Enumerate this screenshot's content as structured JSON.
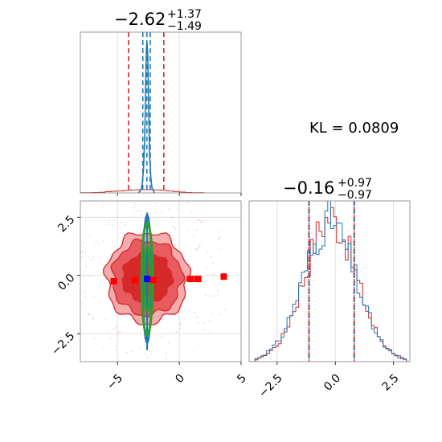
{
  "colors": {
    "posterior": "#d62728",
    "reference": "#1f77b4",
    "contour_fill_light": "#f4a9aa",
    "contour_fill_mid": "#e8575a",
    "contour_fill_dark": "#d62728",
    "ellipse": "#2ca02c",
    "scatter_red": "#ff0000",
    "scatter_blue": "#0000ff",
    "grid": "#d9d9d9",
    "axis": "#808080"
  },
  "kl": {
    "text": "KL = 0.0809"
  },
  "chart_data": [
    {
      "type": "histogram",
      "panel": "top-left marginal",
      "title": {
        "value": "−2.62",
        "plus": "+1.37",
        "minus": "−1.49"
      },
      "xlim": [
        -8,
        5
      ],
      "quantile_lines_red": [
        -4.11,
        -2.62,
        -1.25
      ],
      "quantile_lines_blue": [
        -2.95,
        -2.62,
        -2.35
      ],
      "vertical_grid": [
        -5,
        0
      ],
      "series": [
        {
          "color": "red",
          "bin_edges": [
            -8,
            -7,
            -6.5,
            -6,
            -5.5,
            -5,
            -4.5,
            -4,
            -3.5,
            -3,
            -2.5,
            -2,
            -1.5,
            -1,
            -0.5,
            0,
            0.5,
            1,
            2
          ],
          "counts": [
            0.01,
            0.02,
            0.03,
            0.06,
            0.08,
            0.09,
            0.12,
            0.14,
            0.15,
            0.16,
            0.15,
            0.14,
            0.12,
            0.09,
            0.07,
            0.04,
            0.02,
            0.01
          ]
        },
        {
          "color": "blue",
          "x": [
            -3.3,
            -3.1,
            -3.0,
            -2.9,
            -2.8,
            -2.75,
            -2.7,
            -2.65,
            -2.6,
            -2.55,
            -2.5,
            -2.45,
            -2.4,
            -2.3,
            -2.2,
            -2.0
          ],
          "y": [
            0.0,
            0.02,
            0.06,
            0.15,
            0.35,
            0.55,
            0.8,
            0.98,
            1.0,
            0.92,
            0.7,
            0.45,
            0.25,
            0.1,
            0.03,
            0.0
          ]
        }
      ],
      "ylim": [
        0,
        1.05
      ]
    },
    {
      "type": "contour_scatter",
      "panel": "bottom-left 2D",
      "xlim": [
        -8,
        5
      ],
      "ylim": [
        -3.7,
        3.2
      ],
      "xticks": [
        -5,
        0,
        5
      ],
      "xtick_labels": [
        "−5",
        "0",
        "5"
      ],
      "yticks": [
        -2.5,
        0.0,
        2.5
      ],
      "ytick_labels": [
        "−2.5",
        "0.0",
        "2.5"
      ],
      "grid_x": [
        -5,
        0
      ],
      "grid_y": [
        -2.5,
        0.0,
        2.5
      ],
      "contour_center": [
        -2.6,
        -0.1
      ],
      "contour_levels_radii": [
        [
          5.8,
          3.3
        ],
        [
          4.8,
          2.6
        ],
        [
          3.0,
          1.8
        ]
      ],
      "green_ellipse": {
        "center": [
          -2.6,
          -0.15
        ],
        "rx": 0.45,
        "ry": 2.4
      },
      "blue_band": {
        "center": [
          -2.6,
          -0.15
        ],
        "rx": 0.35,
        "ry": 2.75
      },
      "red_squares": [
        [
          -5.3,
          -0.25
        ],
        [
          -3.6,
          -0.2
        ],
        [
          -2.1,
          -0.2
        ],
        [
          0.9,
          -0.15
        ],
        [
          1.5,
          -0.15
        ],
        [
          3.6,
          -0.05
        ]
      ],
      "blue_square": [
        -2.6,
        -0.15
      ]
    },
    {
      "type": "histogram",
      "panel": "bottom-right marginal",
      "title": {
        "value": "−0.16",
        "plus": "+0.97",
        "minus": "−0.97"
      },
      "xlim": [
        -3.7,
        3.2
      ],
      "xticks": [
        -2.5,
        0.0,
        2.5
      ],
      "xtick_labels": [
        "−2.5",
        "0.0",
        "2.5"
      ],
      "vertical_grid": [
        -2.5,
        0.0,
        2.5
      ],
      "quantile_lines_red": [
        -1.13,
        -0.16,
        0.81
      ],
      "quantile_lines_blue": [
        -1.13,
        -0.16,
        0.81
      ],
      "series": [
        {
          "color": "red",
          "x": [
            -3.5,
            -3.25,
            -3.0,
            -2.75,
            -2.5,
            -2.25,
            -2.0,
            -1.75,
            -1.5,
            -1.25,
            -1.0,
            -0.75,
            -0.5,
            -0.25,
            0.0,
            0.25,
            0.5,
            0.75,
            1.0,
            1.25,
            1.5,
            1.75,
            2.0,
            2.25,
            2.5,
            2.75,
            3.0
          ],
          "y": [
            0.01,
            0.03,
            0.05,
            0.08,
            0.12,
            0.18,
            0.28,
            0.38,
            0.5,
            0.62,
            0.76,
            0.86,
            0.92,
            0.96,
            0.9,
            0.84,
            0.74,
            0.6,
            0.48,
            0.36,
            0.26,
            0.18,
            0.12,
            0.08,
            0.05,
            0.03,
            0.01
          ]
        },
        {
          "color": "blue",
          "x": [
            -3.5,
            -3.25,
            -3.0,
            -2.75,
            -2.5,
            -2.25,
            -2.0,
            -1.75,
            -1.5,
            -1.25,
            -1.0,
            -0.75,
            -0.5,
            -0.25,
            0.0,
            0.25,
            0.5,
            0.75,
            1.0,
            1.25,
            1.5,
            1.75,
            2.0,
            2.25,
            2.5,
            2.75,
            3.0
          ],
          "y": [
            0.02,
            0.03,
            0.06,
            0.09,
            0.13,
            0.2,
            0.3,
            0.4,
            0.52,
            0.64,
            0.74,
            0.84,
            0.9,
            0.93,
            0.88,
            0.8,
            0.7,
            0.58,
            0.46,
            0.35,
            0.25,
            0.17,
            0.11,
            0.07,
            0.04,
            0.02,
            0.01
          ]
        }
      ],
      "ylim": [
        0,
        1.05
      ]
    }
  ]
}
